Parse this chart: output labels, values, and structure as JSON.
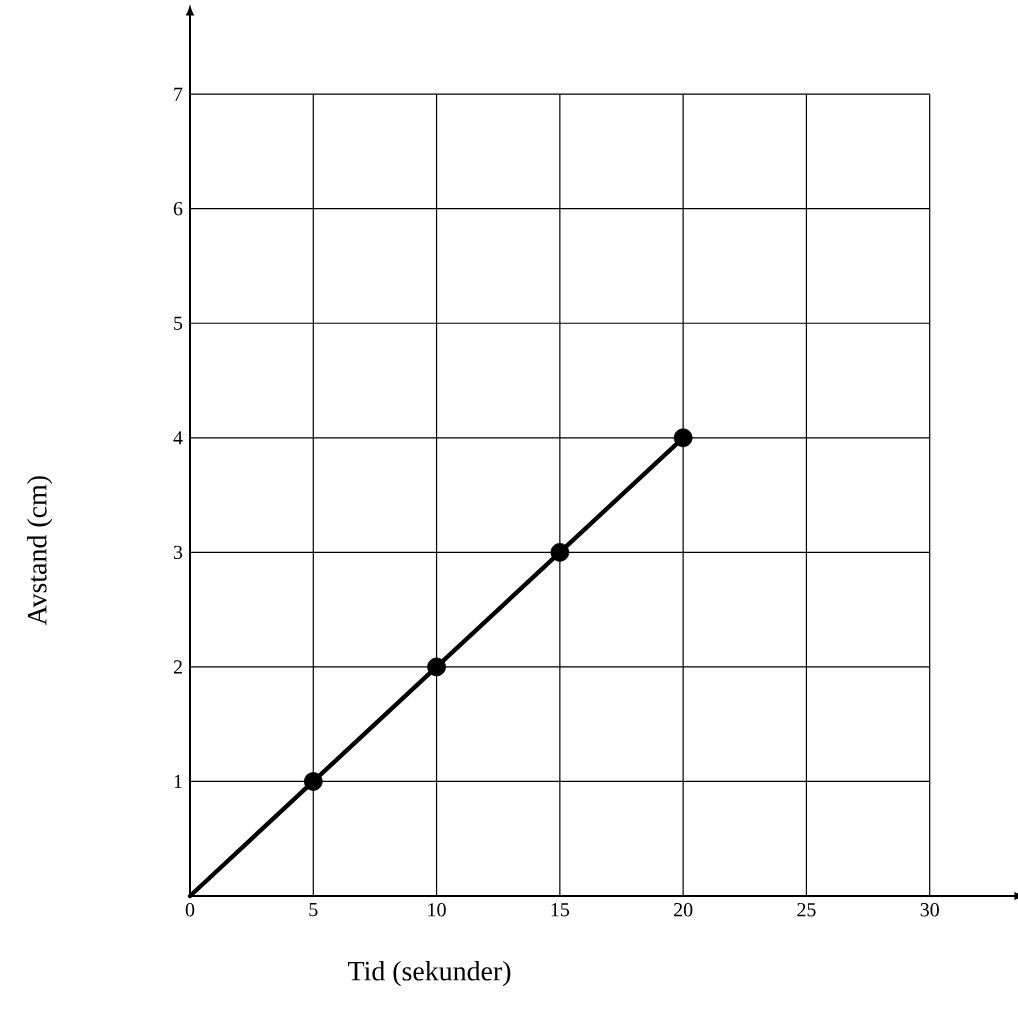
{
  "chart_data": {
    "type": "line",
    "xlabel": "Tid (sekunder)",
    "ylabel": "Avstand (cm)",
    "xlim": [
      0,
      33.5
    ],
    "ylim": [
      0,
      7.7
    ],
    "xticks": [
      0,
      5,
      10,
      15,
      20,
      25,
      30
    ],
    "yticks": [
      1,
      2,
      3,
      4,
      5,
      6,
      7
    ],
    "grid": true,
    "series": [
      {
        "color": "#000000",
        "marker": "none",
        "line_style": "solid",
        "x": [
          0,
          5,
          10,
          15,
          20
        ],
        "values": [
          0,
          1,
          2,
          3,
          4
        ]
      },
      {
        "type": "scatter",
        "color": "#000000",
        "marker": "circle",
        "x": [
          5,
          10,
          15,
          20
        ],
        "values": [
          1,
          2,
          3,
          4
        ]
      }
    ]
  }
}
